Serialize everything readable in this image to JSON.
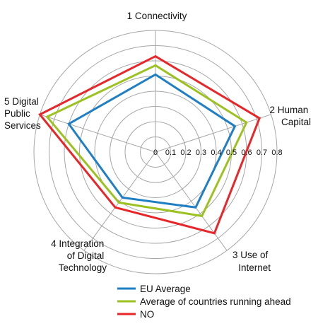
{
  "chart_data": {
    "type": "radar",
    "axes": [
      {
        "label_lines": [
          "1 Connectivity"
        ]
      },
      {
        "label_lines": [
          "2 Human",
          "Capital"
        ]
      },
      {
        "label_lines": [
          "3 Use of",
          "Internet"
        ]
      },
      {
        "label_lines": [
          "4 Integration",
          "of Digital",
          "Technology"
        ]
      },
      {
        "label_lines": [
          "5 Digital",
          "Public",
          "Services"
        ]
      }
    ],
    "range": [
      0,
      0.8
    ],
    "ticks": [
      "0",
      "0.1",
      "0.2",
      "0.3",
      "0.4",
      "0.5",
      "0.6",
      "0.7",
      "0.8"
    ],
    "grid": true,
    "legend_position": "bottom",
    "series": [
      {
        "name": "EU Average",
        "color": "#1f7fc4",
        "values": [
          0.51,
          0.55,
          0.45,
          0.37,
          0.6
        ]
      },
      {
        "name": "Average of countries running ahead",
        "color": "#9bc21f",
        "values": [
          0.57,
          0.63,
          0.52,
          0.41,
          0.75
        ]
      },
      {
        "name": "NO",
        "color": "#e8262a",
        "values": [
          0.63,
          0.72,
          0.66,
          0.45,
          0.8
        ]
      }
    ]
  }
}
